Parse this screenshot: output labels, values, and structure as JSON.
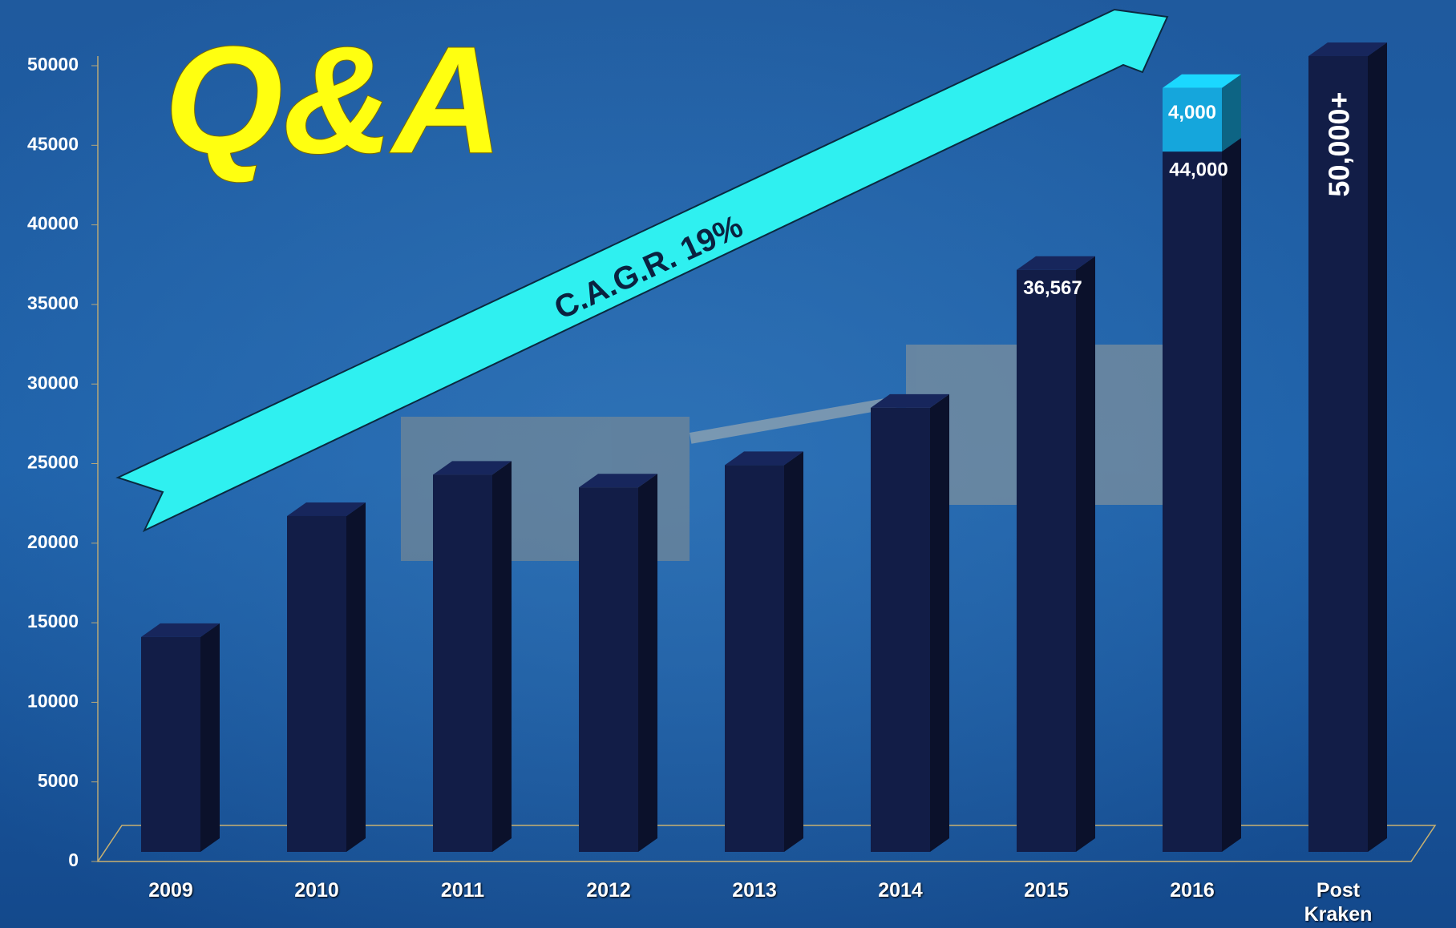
{
  "chart_data": {
    "type": "bar",
    "stacked": true,
    "three_d": true,
    "title": "Q&A",
    "annotation": "C.A.G.R. 19%",
    "categories": [
      "2009",
      "2010",
      "2011",
      "2012",
      "2013",
      "2014",
      "2015",
      "2016",
      "Post Kraken"
    ],
    "series": [
      {
        "color": "#121d47",
        "values": [
          13500,
          21100,
          23700,
          22900,
          24300,
          27900,
          36567,
          44000,
          50000
        ],
        "value_labels": [
          null,
          null,
          null,
          null,
          null,
          null,
          "36,567",
          "44,000",
          "50,000+"
        ]
      },
      {
        "color": "#15a6dc",
        "values": [
          null,
          null,
          null,
          null,
          null,
          null,
          null,
          4000,
          null
        ],
        "value_labels": [
          null,
          null,
          null,
          null,
          null,
          null,
          null,
          "4,000",
          null
        ]
      }
    ],
    "ylim": [
      0,
      50000
    ],
    "yticks": [
      0,
      5000,
      10000,
      15000,
      20000,
      25000,
      30000,
      35000,
      40000,
      45000,
      50000
    ],
    "grid": false
  }
}
